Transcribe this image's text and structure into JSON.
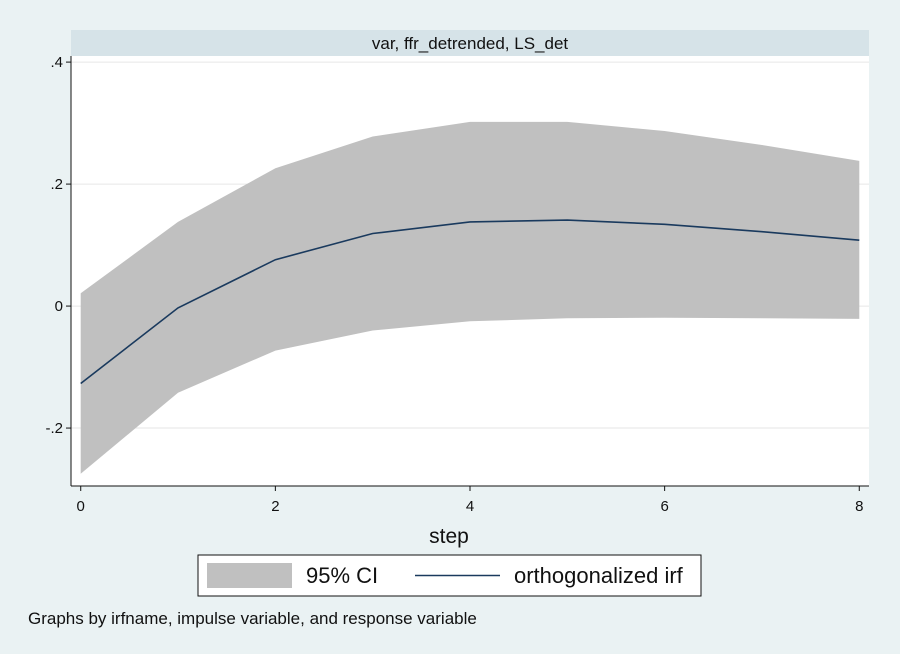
{
  "chart_data": {
    "type": "area",
    "title": "var, ffr_detrended, LS_det",
    "xlabel": "step",
    "ylabel": "",
    "x": [
      0,
      1,
      2,
      3,
      4,
      5,
      6,
      7,
      8
    ],
    "xticks": [
      0,
      2,
      4,
      6,
      8
    ],
    "yticks": [
      0.4,
      0.2,
      0,
      -0.2
    ],
    "ytick_labels": [
      ".4",
      ".2",
      "0",
      "-.2"
    ],
    "xlim": [
      -0.1,
      8.1
    ],
    "ylim": [
      -0.295,
      0.41
    ],
    "grid": true,
    "legend_position": "bottom",
    "series": [
      {
        "name": "95% CI",
        "kind": "band",
        "color": "#c0c0c0",
        "lower": [
          -0.275,
          -0.142,
          -0.073,
          -0.04,
          -0.025,
          -0.02,
          -0.019,
          -0.02,
          -0.021
        ],
        "upper": [
          0.021,
          0.138,
          0.226,
          0.278,
          0.302,
          0.302,
          0.287,
          0.264,
          0.238
        ]
      },
      {
        "name": "orthogonalized irf",
        "kind": "line",
        "color": "#1a3a5e",
        "values": [
          -0.127,
          -0.003,
          0.076,
          0.119,
          0.138,
          0.141,
          0.134,
          0.122,
          0.108
        ]
      }
    ],
    "note": "Graphs by irfname, impulse variable, and response variable"
  }
}
